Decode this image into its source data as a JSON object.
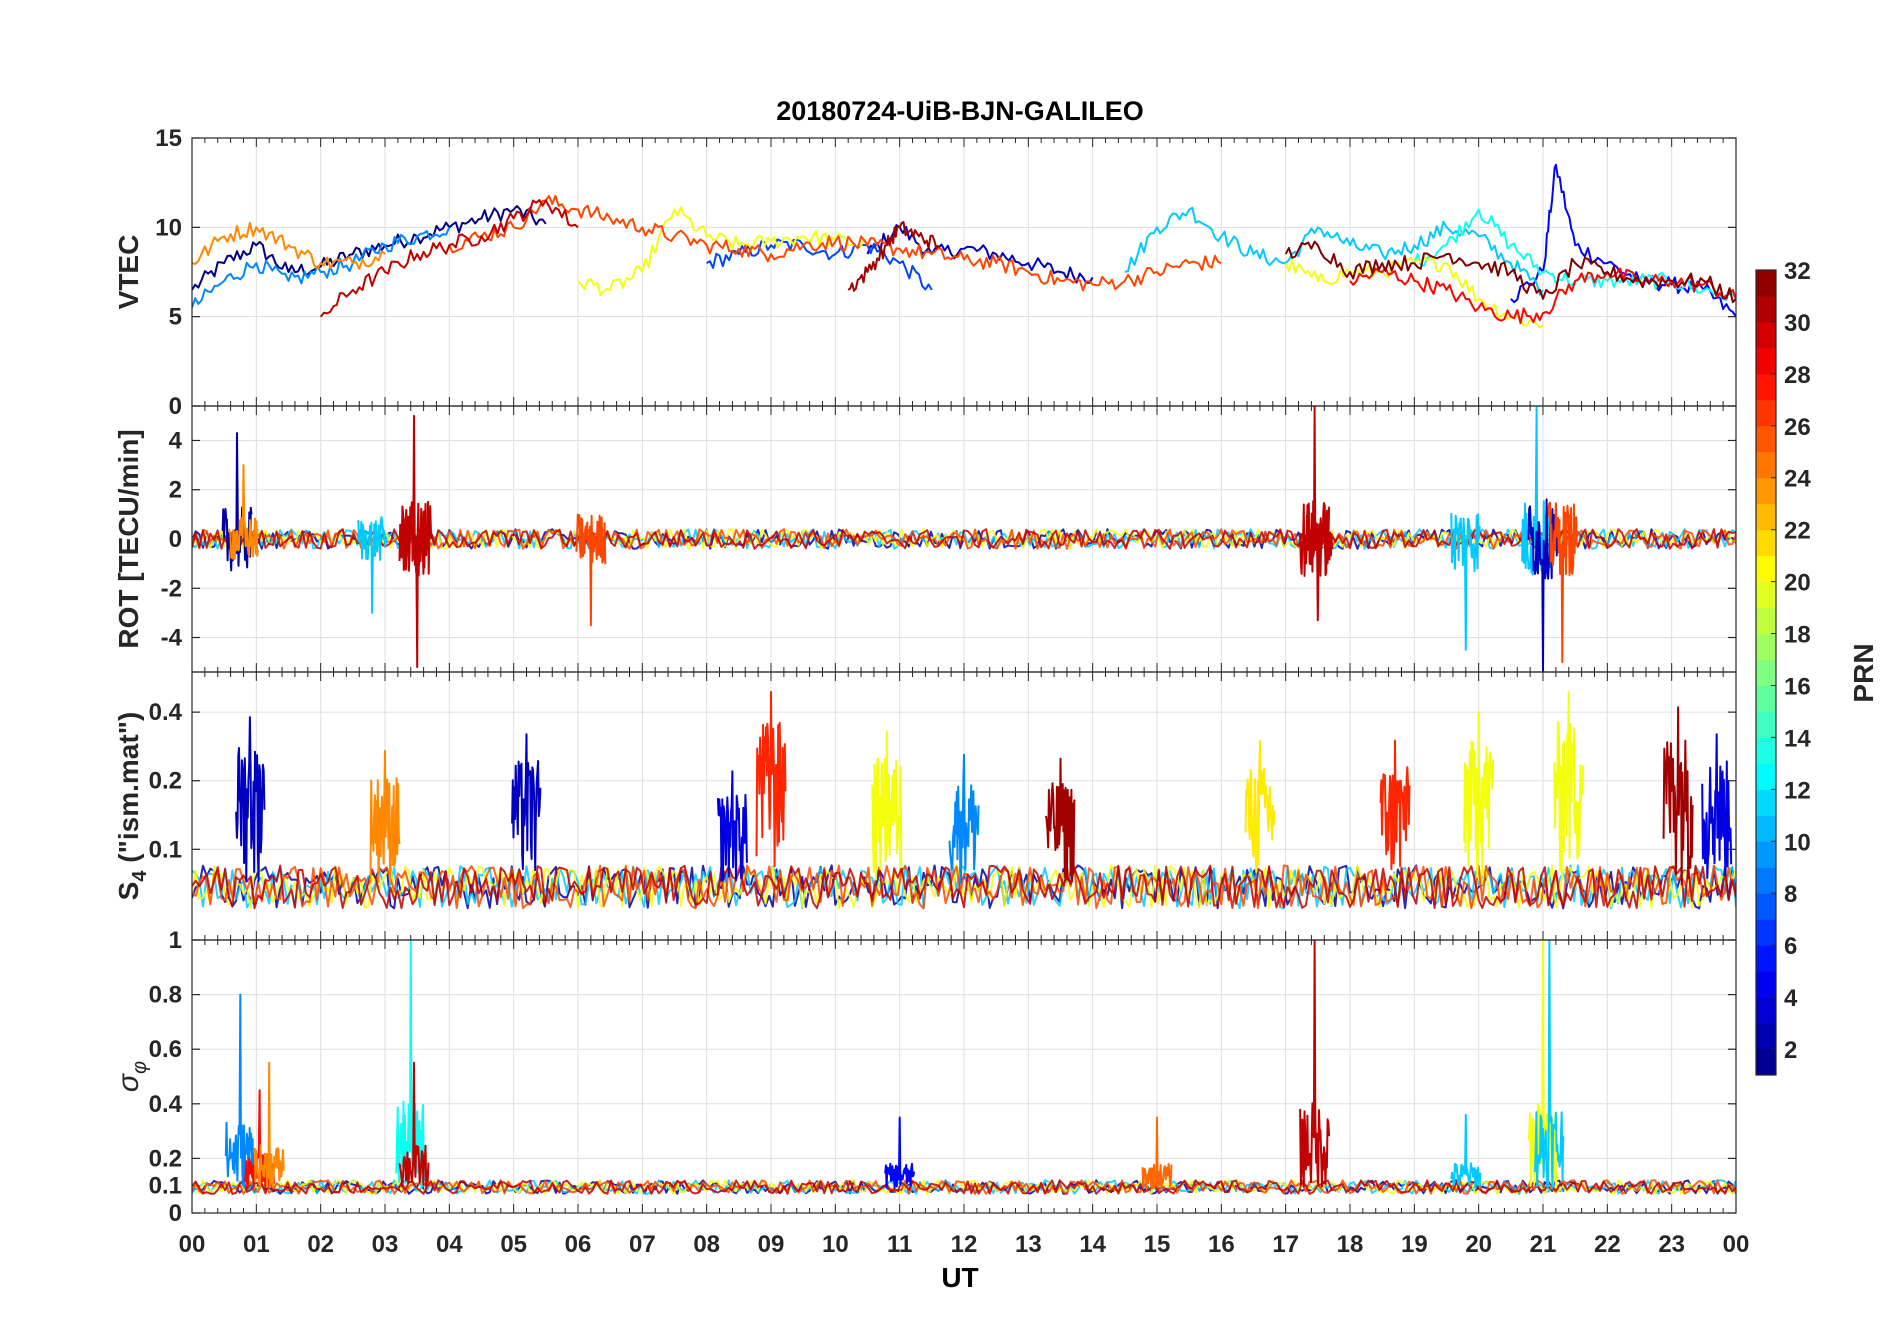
{
  "chart_data": {
    "type": "line",
    "title": "20180724-UiB-BJN-GALILEO",
    "xlabel": "UT",
    "xlim": [
      0,
      24
    ],
    "x_tick_labels": [
      "00",
      "01",
      "02",
      "03",
      "04",
      "05",
      "06",
      "07",
      "08",
      "09",
      "10",
      "11",
      "12",
      "13",
      "14",
      "15",
      "16",
      "17",
      "18",
      "19",
      "20",
      "21",
      "22",
      "23",
      "00"
    ],
    "colorbar": {
      "label": "PRN",
      "range": [
        1,
        32
      ],
      "tick_labels": [
        "2",
        "4",
        "6",
        "8",
        "10",
        "12",
        "14",
        "16",
        "18",
        "20",
        "22",
        "24",
        "26",
        "28",
        "30",
        "32"
      ],
      "colormap": "jet"
    },
    "panels": [
      {
        "id": "vtec",
        "ylabel": "VTEC",
        "ylim": [
          0,
          15
        ],
        "y_ticks": [
          0,
          5,
          10,
          15
        ],
        "y_tick_labels": [
          "0",
          "5",
          "10",
          "15"
        ],
        "series": [
          {
            "prn": 1,
            "x": [
              0,
              0.5,
              1,
              1.5,
              2,
              2.5,
              3,
              3.5,
              4,
              4.5,
              5,
              5.5
            ],
            "y": [
              6.5,
              8,
              9,
              7.5,
              7.8,
              8.5,
              9,
              9.5,
              10,
              10.5,
              11,
              10.2
            ]
          },
          {
            "prn": 3,
            "x": [
              10.5,
              11,
              11.5,
              12,
              12.5,
              13,
              13.5,
              14
            ],
            "y": [
              8.5,
              10,
              8.5,
              8.8,
              8.5,
              8,
              7.5,
              7.2
            ]
          },
          {
            "prn": 5,
            "x": [
              20.5,
              21,
              21.2,
              21.5,
              22,
              22.5,
              23,
              23.5,
              24
            ],
            "y": [
              6,
              7.5,
              13.5,
              9,
              8,
              7,
              6.8,
              6.5,
              5
            ]
          },
          {
            "prn": 7,
            "x": [
              8,
              8.5,
              9,
              9.5,
              10,
              10.5,
              11,
              11.5
            ],
            "y": [
              8,
              8.5,
              9,
              9,
              8.5,
              9,
              8,
              6.5
            ]
          },
          {
            "prn": 9,
            "x": [
              0,
              0.5,
              1,
              1.5,
              2,
              2.5,
              3,
              3.5,
              4
            ],
            "y": [
              5.5,
              7,
              8,
              7,
              7.5,
              8,
              9,
              9.5,
              10
            ]
          },
          {
            "prn": 11,
            "x": [
              14.5,
              15,
              15.5,
              16,
              16.5,
              17,
              17.5,
              18,
              18.5,
              19,
              19.5,
              20,
              20.5,
              21
            ],
            "y": [
              7.5,
              10,
              11,
              9.5,
              8.5,
              8,
              10,
              9,
              8.5,
              9,
              10,
              9.5,
              8,
              6.5
            ]
          },
          {
            "prn": 13,
            "x": [
              19,
              19.5,
              20,
              20.5,
              21,
              21.5,
              22,
              22.5,
              23,
              23.5,
              24
            ],
            "y": [
              8,
              9,
              11,
              9,
              7.5,
              7,
              7,
              7,
              7,
              6.5,
              6
            ]
          },
          {
            "prn": 20,
            "x": [
              6,
              6.5,
              7,
              7.5,
              8,
              8.5,
              9,
              9.5,
              10,
              10.5
            ],
            "y": [
              7,
              6.5,
              7.5,
              11,
              9.5,
              9,
              9.2,
              9.5,
              9.3,
              9
            ]
          },
          {
            "prn": 20,
            "x": [
              17,
              17.5,
              18,
              18.5,
              19,
              19.5,
              20,
              20.5,
              21
            ],
            "y": [
              8,
              7,
              7.5,
              7.5,
              8,
              8,
              6,
              5,
              4.5
            ]
          },
          {
            "prn": 24,
            "x": [
              0,
              0.5,
              1,
              1.5,
              2,
              2.5,
              3
            ],
            "y": [
              8,
              9.5,
              10,
              9,
              8,
              8,
              8.5
            ]
          },
          {
            "prn": 26,
            "x": [
              4,
              4.5,
              5,
              5.5,
              6,
              6.5,
              7,
              7.5,
              8,
              8.5,
              9,
              9.5,
              10,
              10.5,
              11,
              11.5,
              12,
              12.5,
              13,
              13.5,
              14,
              14.5,
              15,
              15.5,
              16
            ],
            "y": [
              9,
              9.5,
              10,
              11.5,
              11,
              10.5,
              10,
              9.5,
              9,
              8.8,
              8.5,
              9,
              9.2,
              9,
              8.8,
              8.5,
              8.2,
              8,
              7.5,
              7,
              6.8,
              7,
              7.5,
              8,
              8
            ]
          },
          {
            "prn": 28,
            "x": [
              18,
              18.5,
              19,
              19.5,
              20,
              20.5,
              21,
              21.5,
              22,
              22.5,
              23,
              23.5,
              24
            ],
            "y": [
              7,
              7.5,
              7,
              6.5,
              5.5,
              5,
              5.2,
              7,
              7.5,
              7,
              7,
              6.8,
              6
            ]
          },
          {
            "prn": 30,
            "x": [
              2,
              2.5,
              3,
              3.5,
              4,
              4.5,
              5,
              5.5,
              6
            ],
            "y": [
              5,
              6.5,
              7.5,
              8.5,
              9,
              9.5,
              10.5,
              11.5,
              10
            ]
          },
          {
            "prn": 31,
            "x": [
              10.2,
              10.5,
              10.8,
              11,
              11.3,
              11.6
            ],
            "y": [
              6.5,
              7.5,
              9,
              10,
              9.5,
              9
            ]
          },
          {
            "prn": 32,
            "x": [
              17,
              17.5,
              18,
              18.5,
              19,
              19.5,
              20,
              20.5,
              21,
              21.5,
              22,
              22.5,
              23,
              23.5,
              24
            ],
            "y": [
              8.5,
              9,
              7.5,
              8,
              8,
              8.5,
              8,
              7.5,
              6,
              8,
              7.5,
              7,
              7,
              7,
              6
            ]
          }
        ]
      },
      {
        "id": "rot",
        "ylabel": "ROT [TECU/min]",
        "ylim": [
          -5.4,
          5.4
        ],
        "y_ticks": [
          -4,
          -2,
          0,
          2,
          4
        ],
        "y_tick_labels": [
          "-4",
          "-2",
          "0",
          "2",
          "4"
        ],
        "activity": [
          {
            "x": 0.7,
            "peak": 4.3,
            "prn": 2
          },
          {
            "x": 0.8,
            "peak": 3.0,
            "prn": 24
          },
          {
            "x": 2.8,
            "peak": -3.0,
            "prn": 11
          },
          {
            "x": 3.45,
            "peak": 5.0,
            "prn": 30
          },
          {
            "x": 3.5,
            "peak": -5.2,
            "prn": 30
          },
          {
            "x": 6.2,
            "peak": -3.5,
            "prn": 26
          },
          {
            "x": 17.45,
            "peak": 5.4,
            "prn": 30
          },
          {
            "x": 17.5,
            "peak": -3.3,
            "prn": 30
          },
          {
            "x": 19.8,
            "peak": -4.5,
            "prn": 11
          },
          {
            "x": 20.9,
            "peak": 5.4,
            "prn": 11
          },
          {
            "x": 21.0,
            "peak": -5.4,
            "prn": 3
          },
          {
            "x": 21.3,
            "peak": -5.0,
            "prn": 26
          }
        ]
      },
      {
        "id": "s4",
        "ylabel": "S4 (\"ism.mat\")",
        "ylabel_main": "S",
        "ylabel_sub": "4",
        "ylabel_rest": " (\"ism.mat\")",
        "ylim": [
          0.04,
          0.6
        ],
        "y_scale": "log",
        "y_ticks": [
          0.1,
          0.2,
          0.4
        ],
        "y_tick_labels": [
          "0.1",
          "0.2",
          "0.4"
        ],
        "activity": [
          {
            "x": 0.9,
            "peak": 0.38,
            "prn": 3
          },
          {
            "x": 3.0,
            "peak": 0.27,
            "prn": 24
          },
          {
            "x": 5.2,
            "peak": 0.32,
            "prn": 3
          },
          {
            "x": 8.4,
            "peak": 0.22,
            "prn": 4
          },
          {
            "x": 9.0,
            "peak": 0.49,
            "prn": 27
          },
          {
            "x": 10.8,
            "peak": 0.33,
            "prn": 20
          },
          {
            "x": 12.0,
            "peak": 0.26,
            "prn": 9
          },
          {
            "x": 13.5,
            "peak": 0.25,
            "prn": 31
          },
          {
            "x": 16.6,
            "peak": 0.3,
            "prn": 21
          },
          {
            "x": 18.7,
            "peak": 0.3,
            "prn": 27
          },
          {
            "x": 20.0,
            "peak": 0.4,
            "prn": 20
          },
          {
            "x": 21.4,
            "peak": 0.49,
            "prn": 20
          },
          {
            "x": 23.1,
            "peak": 0.42,
            "prn": 31
          },
          {
            "x": 23.7,
            "peak": 0.32,
            "prn": 4
          }
        ]
      },
      {
        "id": "sigma",
        "ylabel": "σφ",
        "ylabel_main": "σ",
        "ylabel_sub": "φ",
        "ylim": [
          0,
          1.0
        ],
        "y_ticks": [
          0,
          0.1,
          0.2,
          0.4,
          0.6,
          0.8,
          1.0
        ],
        "y_tick_labels": [
          "0",
          "0.1",
          "0.2",
          "0.4",
          "0.6",
          "0.8",
          "1"
        ],
        "activity": [
          {
            "x": 0.75,
            "peak": 0.8,
            "prn": 9
          },
          {
            "x": 1.05,
            "peak": 0.45,
            "prn": 28
          },
          {
            "x": 1.2,
            "peak": 0.55,
            "prn": 24
          },
          {
            "x": 3.4,
            "peak": 1.0,
            "prn": 13
          },
          {
            "x": 3.45,
            "peak": 0.55,
            "prn": 30
          },
          {
            "x": 11.0,
            "peak": 0.35,
            "prn": 5
          },
          {
            "x": 15.0,
            "peak": 0.35,
            "prn": 25
          },
          {
            "x": 17.45,
            "peak": 1.0,
            "prn": 30
          },
          {
            "x": 19.8,
            "peak": 0.36,
            "prn": 11
          },
          {
            "x": 21.0,
            "peak": 1.0,
            "prn": 20
          },
          {
            "x": 21.1,
            "peak": 1.0,
            "prn": 11
          }
        ]
      }
    ]
  }
}
